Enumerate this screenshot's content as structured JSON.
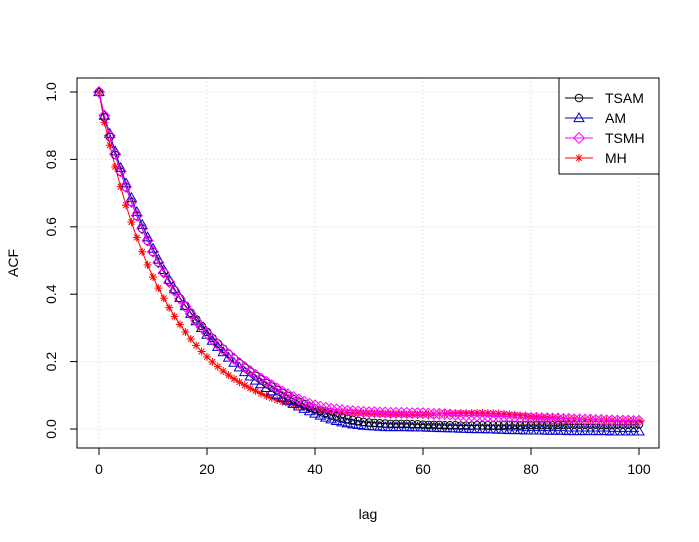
{
  "chart_data": {
    "type": "line",
    "title": "",
    "xlabel": "lag",
    "ylabel": "ACF",
    "xlim": [
      0,
      100
    ],
    "ylim": [
      0,
      1
    ],
    "xticks": [
      0,
      20,
      40,
      60,
      80,
      100
    ],
    "yticks": [
      0.0,
      0.2,
      0.4,
      0.6,
      0.8,
      1.0
    ],
    "x_tick_labels": [
      "0",
      "20",
      "40",
      "60",
      "80",
      "100"
    ],
    "y_tick_labels": [
      "0.0",
      "0.2",
      "0.4",
      "0.6",
      "0.8",
      "1.0"
    ],
    "grid": true,
    "legend_position": "top-right",
    "x": [
      0,
      1,
      2,
      3,
      4,
      5,
      6,
      7,
      8,
      9,
      10,
      11,
      12,
      13,
      14,
      15,
      16,
      17,
      18,
      19,
      20,
      21,
      22,
      23,
      24,
      25,
      26,
      27,
      28,
      29,
      30,
      31,
      32,
      33,
      34,
      35,
      36,
      37,
      38,
      39,
      40,
      41,
      42,
      43,
      44,
      45,
      46,
      47,
      48,
      49,
      50,
      51,
      52,
      53,
      54,
      55,
      56,
      57,
      58,
      59,
      60,
      61,
      62,
      63,
      64,
      65,
      66,
      67,
      68,
      69,
      70,
      71,
      72,
      73,
      74,
      75,
      76,
      77,
      78,
      79,
      80,
      81,
      82,
      83,
      84,
      85,
      86,
      87,
      88,
      89,
      90,
      91,
      92,
      93,
      94,
      95,
      96,
      97,
      98,
      99,
      100
    ],
    "series": [
      {
        "name": "TSAM",
        "color": "#000000",
        "marker": "circle",
        "values": [
          1.0,
          0.925,
          0.867,
          0.813,
          0.763,
          0.717,
          0.673,
          0.632,
          0.594,
          0.558,
          0.525,
          0.494,
          0.465,
          0.438,
          0.412,
          0.388,
          0.366,
          0.345,
          0.325,
          0.306,
          0.288,
          0.27,
          0.254,
          0.238,
          0.223,
          0.209,
          0.195,
          0.182,
          0.17,
          0.158,
          0.147,
          0.136,
          0.126,
          0.116,
          0.107,
          0.098,
          0.089,
          0.081,
          0.074,
          0.067,
          0.06,
          0.054,
          0.048,
          0.043,
          0.038,
          0.034,
          0.03,
          0.027,
          0.024,
          0.021,
          0.019,
          0.018,
          0.017,
          0.016,
          0.015,
          0.015,
          0.015,
          0.015,
          0.014,
          0.014,
          0.013,
          0.012,
          0.012,
          0.012,
          0.011,
          0.011,
          0.011,
          0.01,
          0.01,
          0.01,
          0.011,
          0.011,
          0.011,
          0.011,
          0.011,
          0.012,
          0.012,
          0.012,
          0.011,
          0.012,
          0.012,
          0.012,
          0.012,
          0.012,
          0.011,
          0.012,
          0.012,
          0.013,
          0.013,
          0.013,
          0.013,
          0.013,
          0.013,
          0.012,
          0.012,
          0.012,
          0.013,
          0.013,
          0.013,
          0.013,
          0.014
        ]
      },
      {
        "name": "AM",
        "color": "#0000CD",
        "marker": "triangle",
        "values": [
          1.0,
          0.93,
          0.876,
          0.824,
          0.775,
          0.729,
          0.686,
          0.644,
          0.606,
          0.569,
          0.535,
          0.503,
          0.472,
          0.443,
          0.415,
          0.389,
          0.365,
          0.342,
          0.32,
          0.3,
          0.28,
          0.262,
          0.244,
          0.228,
          0.212,
          0.197,
          0.183,
          0.169,
          0.156,
          0.144,
          0.133,
          0.122,
          0.112,
          0.102,
          0.093,
          0.084,
          0.075,
          0.067,
          0.06,
          0.053,
          0.046,
          0.04,
          0.034,
          0.029,
          0.024,
          0.02,
          0.017,
          0.014,
          0.012,
          0.01,
          0.009,
          0.008,
          0.007,
          0.006,
          0.006,
          0.006,
          0.006,
          0.006,
          0.005,
          0.005,
          0.005,
          0.004,
          0.004,
          0.003,
          0.003,
          0.002,
          0.002,
          0.001,
          0.001,
          0.0,
          0.0,
          0.0,
          -0.001,
          -0.001,
          -0.002,
          -0.002,
          -0.003,
          -0.003,
          -0.003,
          -0.004,
          -0.004,
          -0.004,
          -0.004,
          -0.005,
          -0.005,
          -0.005,
          -0.005,
          -0.006,
          -0.006,
          -0.006,
          -0.006,
          -0.006,
          -0.006,
          -0.006,
          -0.006,
          -0.007,
          -0.007,
          -0.007,
          -0.007,
          -0.007,
          -0.007
        ]
      },
      {
        "name": "TSMH",
        "color": "#FF00FF",
        "marker": "diamond",
        "values": [
          1.0,
          0.93,
          0.87,
          0.816,
          0.765,
          0.718,
          0.674,
          0.633,
          0.595,
          0.559,
          0.526,
          0.494,
          0.464,
          0.436,
          0.41,
          0.386,
          0.363,
          0.342,
          0.321,
          0.302,
          0.284,
          0.267,
          0.251,
          0.236,
          0.222,
          0.209,
          0.196,
          0.184,
          0.172,
          0.161,
          0.15,
          0.14,
          0.13,
          0.12,
          0.111,
          0.103,
          0.095,
          0.088,
          0.081,
          0.075,
          0.07,
          0.066,
          0.063,
          0.06,
          0.058,
          0.056,
          0.054,
          0.053,
          0.052,
          0.051,
          0.05,
          0.05,
          0.049,
          0.049,
          0.048,
          0.048,
          0.048,
          0.048,
          0.047,
          0.047,
          0.047,
          0.046,
          0.045,
          0.045,
          0.044,
          0.043,
          0.042,
          0.041,
          0.04,
          0.04,
          0.039,
          0.039,
          0.038,
          0.037,
          0.037,
          0.036,
          0.035,
          0.035,
          0.034,
          0.034,
          0.033,
          0.033,
          0.032,
          0.032,
          0.031,
          0.031,
          0.03,
          0.03,
          0.029,
          0.029,
          0.028,
          0.028,
          0.027,
          0.027,
          0.026,
          0.026,
          0.025,
          0.025,
          0.025,
          0.024,
          0.024
        ]
      },
      {
        "name": "MH",
        "color": "#FF0000",
        "marker": "asterisk",
        "values": [
          1.0,
          0.91,
          0.842,
          0.778,
          0.719,
          0.664,
          0.614,
          0.568,
          0.526,
          0.487,
          0.451,
          0.418,
          0.388,
          0.36,
          0.334,
          0.31,
          0.288,
          0.267,
          0.248,
          0.23,
          0.214,
          0.199,
          0.185,
          0.172,
          0.16,
          0.149,
          0.139,
          0.13,
          0.121,
          0.113,
          0.105,
          0.098,
          0.092,
          0.086,
          0.081,
          0.076,
          0.072,
          0.068,
          0.064,
          0.061,
          0.058,
          0.056,
          0.054,
          0.053,
          0.051,
          0.05,
          0.049,
          0.048,
          0.048,
          0.047,
          0.046,
          0.046,
          0.045,
          0.045,
          0.044,
          0.044,
          0.044,
          0.043,
          0.043,
          0.043,
          0.043,
          0.044,
          0.044,
          0.045,
          0.045,
          0.046,
          0.046,
          0.047,
          0.047,
          0.047,
          0.048,
          0.048,
          0.047,
          0.047,
          0.046,
          0.045,
          0.043,
          0.042,
          0.04,
          0.039,
          0.037,
          0.036,
          0.035,
          0.034,
          0.033,
          0.032,
          0.031,
          0.03,
          0.03,
          0.029,
          0.028,
          0.028,
          0.027,
          0.027,
          0.026,
          0.026,
          0.025,
          0.025,
          0.025,
          0.024,
          0.024
        ]
      }
    ]
  }
}
